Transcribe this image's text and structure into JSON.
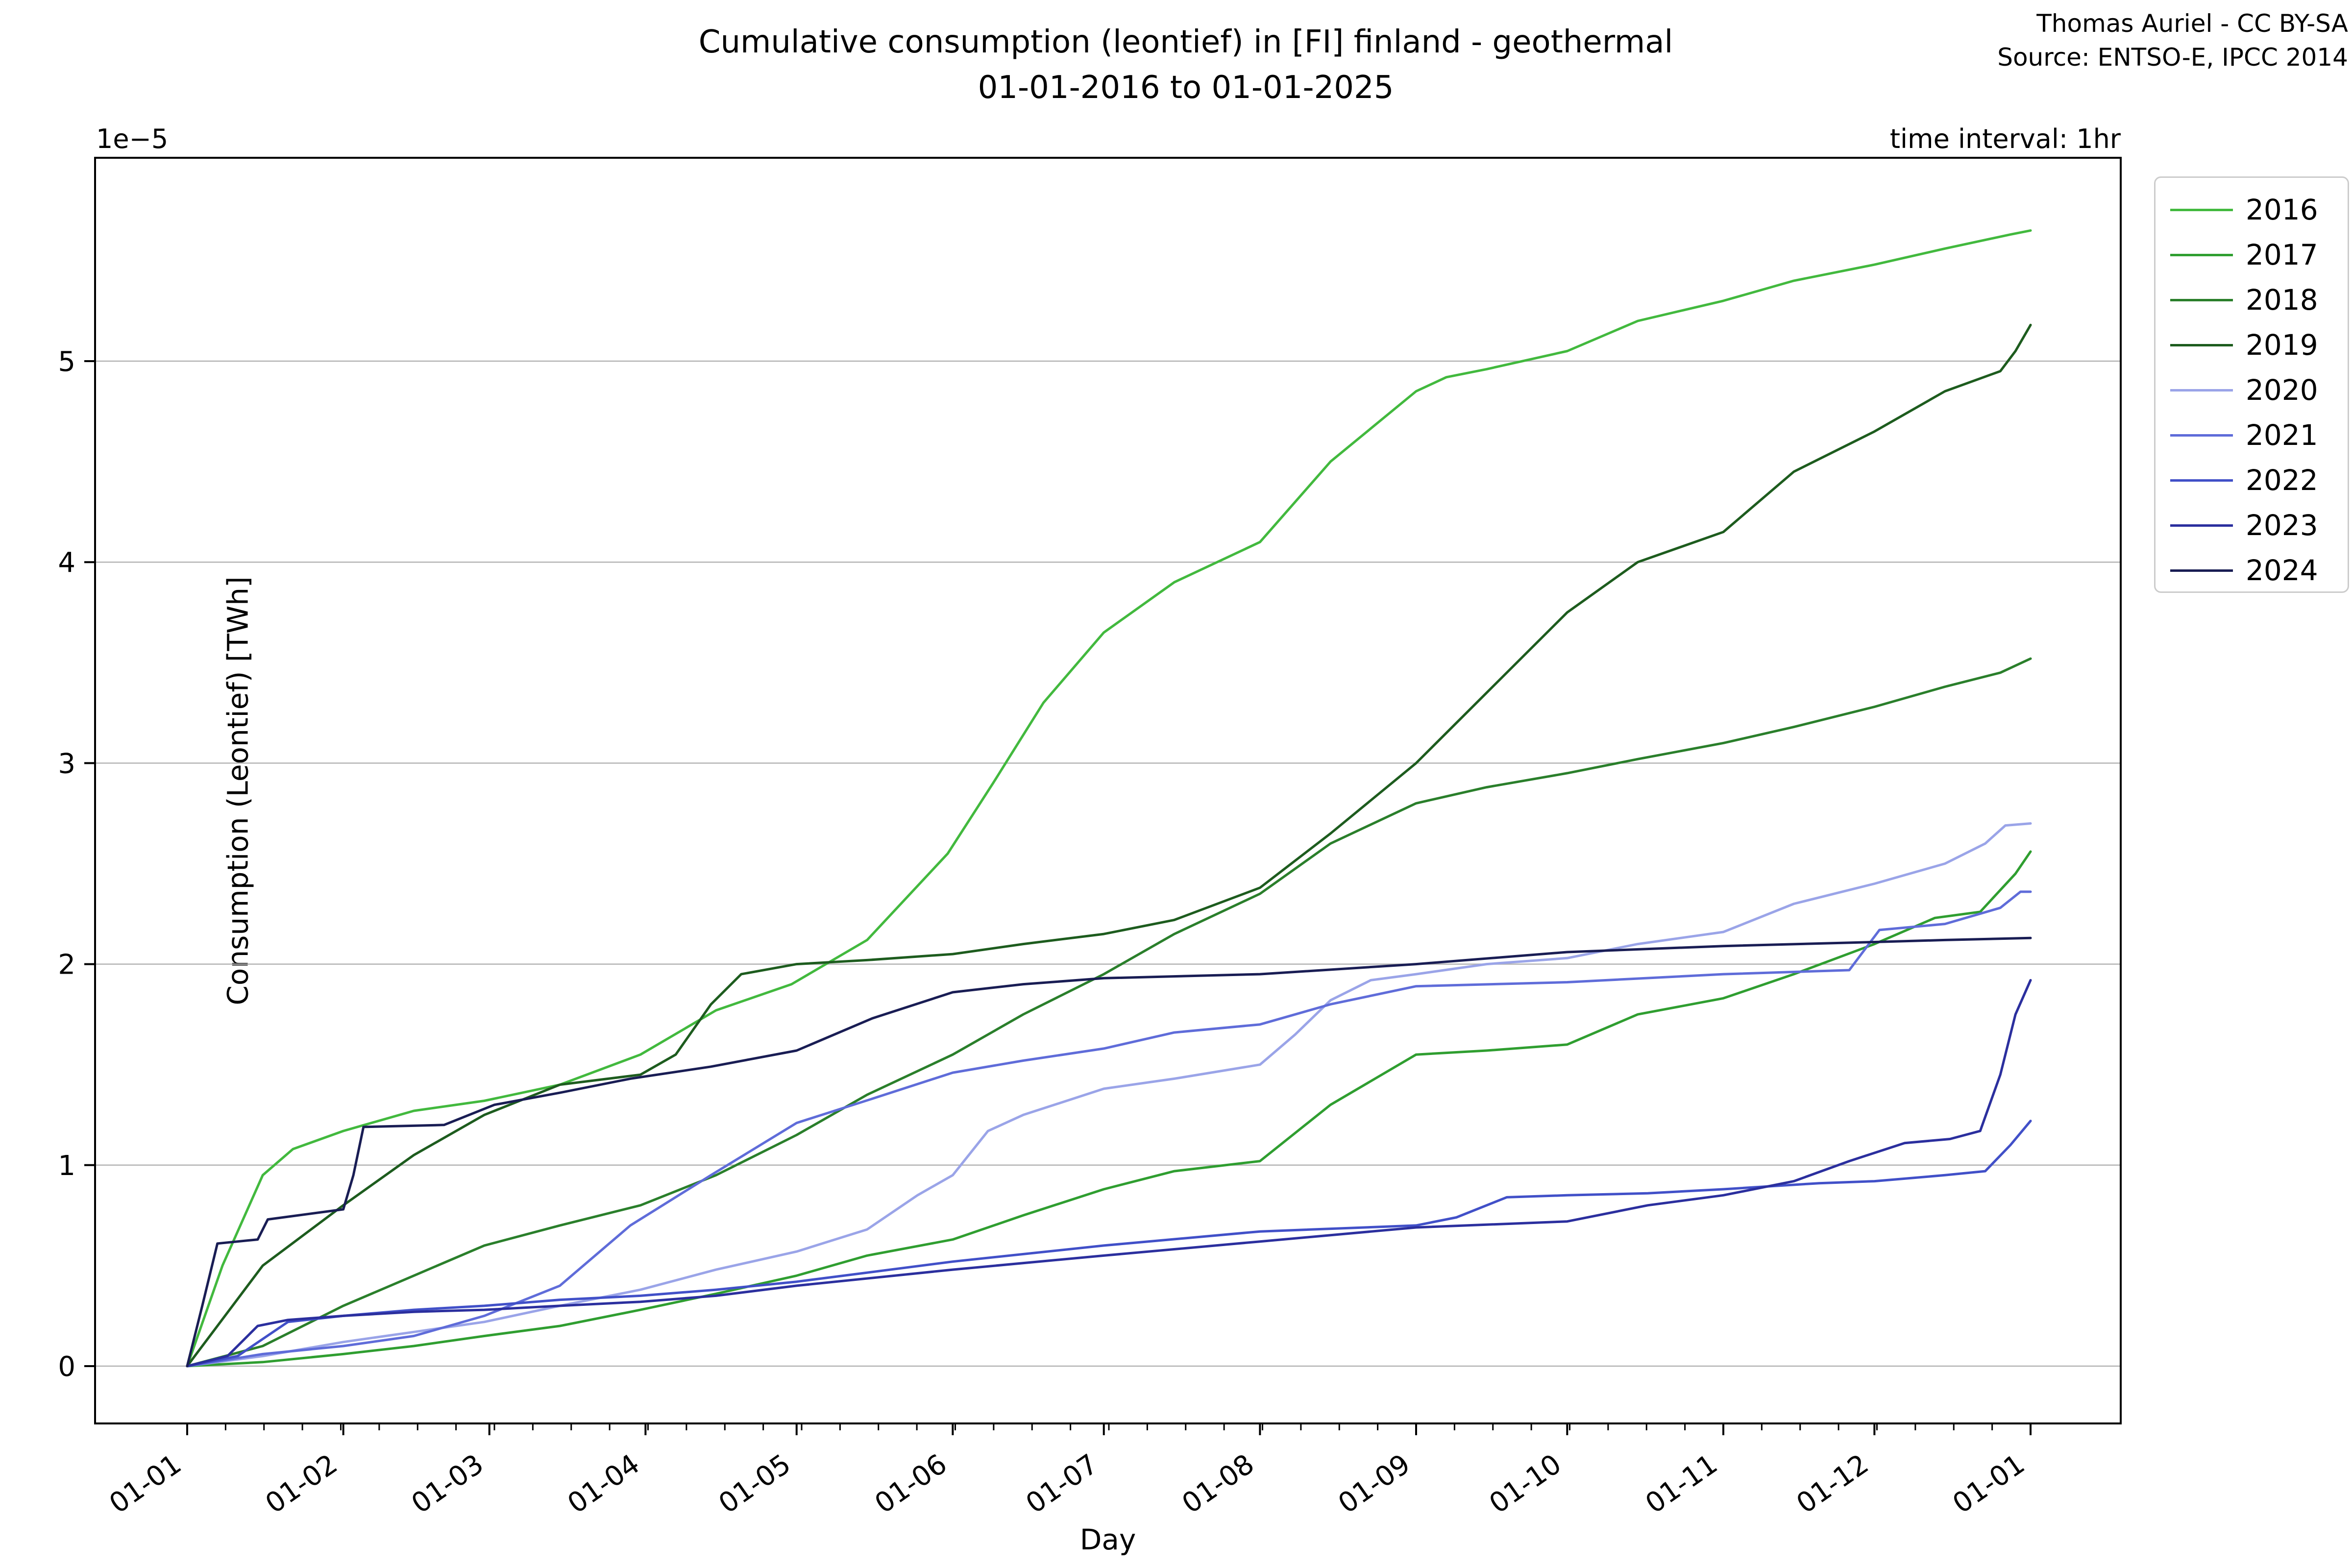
{
  "figure": {
    "title_line1": "Cumulative consumption (leontief) in [FI] finland - geothermal",
    "title_line2": "01-01-2016 to 01-01-2025",
    "attribution_line1": "Thomas Auriel - CC BY-SA",
    "attribution_line2": "Source: ENTSO-E, IPCC 2014",
    "time_interval_label": "time interval: 1hr",
    "xlabel": "Day",
    "ylabel": "Consumption (Leontief) [TWh]",
    "y_offset_label": "1e−5"
  },
  "chart_data": {
    "type": "line",
    "title": "Cumulative consumption (leontief) in [FI] finland - geothermal 01-01-2016 to 01-01-2025",
    "xlabel": "Day",
    "ylabel": "Consumption (Leontief) [TWh]",
    "y_scale_factor": "1e-5",
    "ylim": [
      -0.28,
      6.02
    ],
    "grid": "horizontal-only",
    "gridline_color": "#b4b4b4",
    "legend_position": "upper-right-outside",
    "x_axis": {
      "unit": "day-of-year",
      "range_days": [
        0,
        366
      ],
      "tick_days": [
        0,
        31,
        60,
        91,
        121,
        152,
        182,
        213,
        244,
        274,
        305,
        335,
        366
      ],
      "tick_labels": [
        "01-01",
        "01-02",
        "01-03",
        "01-04",
        "01-05",
        "01-06",
        "01-07",
        "01-08",
        "01-09",
        "01-10",
        "01-11",
        "01-12",
        "01-01"
      ],
      "tick_rotation_deg": -35,
      "minor_tick_step_days": 7.625
    },
    "y_axis": {
      "ticks": [
        0,
        1,
        2,
        3,
        4,
        5
      ],
      "offset_text": "1e−5"
    },
    "series": [
      {
        "name": "2016",
        "color": "#42b93e",
        "points": [
          [
            0,
            0
          ],
          [
            7,
            0.5
          ],
          [
            15,
            0.95
          ],
          [
            21,
            1.08
          ],
          [
            31,
            1.17
          ],
          [
            45,
            1.27
          ],
          [
            59,
            1.32
          ],
          [
            74,
            1.4
          ],
          [
            90,
            1.55
          ],
          [
            105,
            1.77
          ],
          [
            120,
            1.9
          ],
          [
            135,
            2.12
          ],
          [
            151,
            2.55
          ],
          [
            160,
            2.9
          ],
          [
            170,
            3.3
          ],
          [
            182,
            3.65
          ],
          [
            196,
            3.9
          ],
          [
            213,
            4.1
          ],
          [
            227,
            4.5
          ],
          [
            244,
            4.85
          ],
          [
            250,
            4.92
          ],
          [
            258,
            4.96
          ],
          [
            274,
            5.05
          ],
          [
            288,
            5.2
          ],
          [
            305,
            5.3
          ],
          [
            319,
            5.4
          ],
          [
            335,
            5.48
          ],
          [
            349,
            5.56
          ],
          [
            362,
            5.63
          ],
          [
            366,
            5.65
          ]
        ]
      },
      {
        "name": "2017",
        "color": "#2f9e30",
        "points": [
          [
            0,
            0
          ],
          [
            15,
            0.02
          ],
          [
            31,
            0.06
          ],
          [
            45,
            0.1
          ],
          [
            59,
            0.15
          ],
          [
            74,
            0.2
          ],
          [
            90,
            0.28
          ],
          [
            105,
            0.36
          ],
          [
            121,
            0.45
          ],
          [
            135,
            0.55
          ],
          [
            152,
            0.63
          ],
          [
            166,
            0.75
          ],
          [
            182,
            0.88
          ],
          [
            196,
            0.97
          ],
          [
            213,
            1.02
          ],
          [
            227,
            1.3
          ],
          [
            244,
            1.55
          ],
          [
            258,
            1.57
          ],
          [
            274,
            1.6
          ],
          [
            288,
            1.75
          ],
          [
            305,
            1.83
          ],
          [
            319,
            1.95
          ],
          [
            335,
            2.1
          ],
          [
            347,
            2.23
          ],
          [
            356,
            2.26
          ],
          [
            363,
            2.45
          ],
          [
            366,
            2.56
          ]
        ]
      },
      {
        "name": "2018",
        "color": "#2a7f2b",
        "points": [
          [
            0,
            0
          ],
          [
            15,
            0.1
          ],
          [
            31,
            0.3
          ],
          [
            45,
            0.45
          ],
          [
            59,
            0.6
          ],
          [
            74,
            0.7
          ],
          [
            90,
            0.8
          ],
          [
            105,
            0.95
          ],
          [
            121,
            1.15
          ],
          [
            135,
            1.35
          ],
          [
            152,
            1.55
          ],
          [
            166,
            1.75
          ],
          [
            182,
            1.95
          ],
          [
            196,
            2.15
          ],
          [
            213,
            2.35
          ],
          [
            227,
            2.6
          ],
          [
            244,
            2.8
          ],
          [
            258,
            2.88
          ],
          [
            274,
            2.95
          ],
          [
            288,
            3.02
          ],
          [
            305,
            3.1
          ],
          [
            319,
            3.18
          ],
          [
            335,
            3.28
          ],
          [
            349,
            3.38
          ],
          [
            360,
            3.45
          ],
          [
            366,
            3.52
          ]
        ]
      },
      {
        "name": "2019",
        "color": "#1d5c1e",
        "points": [
          [
            0,
            0
          ],
          [
            6,
            0.2
          ],
          [
            15,
            0.5
          ],
          [
            31,
            0.8
          ],
          [
            45,
            1.05
          ],
          [
            59,
            1.25
          ],
          [
            74,
            1.4
          ],
          [
            90,
            1.45
          ],
          [
            97,
            1.55
          ],
          [
            104,
            1.8
          ],
          [
            110,
            1.95
          ],
          [
            121,
            2.0
          ],
          [
            135,
            2.02
          ],
          [
            152,
            2.05
          ],
          [
            166,
            2.1
          ],
          [
            182,
            2.15
          ],
          [
            196,
            2.22
          ],
          [
            213,
            2.38
          ],
          [
            227,
            2.65
          ],
          [
            244,
            3.0
          ],
          [
            258,
            3.35
          ],
          [
            274,
            3.75
          ],
          [
            288,
            4.0
          ],
          [
            305,
            4.15
          ],
          [
            319,
            4.45
          ],
          [
            335,
            4.65
          ],
          [
            349,
            4.85
          ],
          [
            360,
            4.95
          ],
          [
            363,
            5.05
          ],
          [
            366,
            5.18
          ]
        ]
      },
      {
        "name": "2020",
        "color": "#9aa4e8",
        "points": [
          [
            0,
            0
          ],
          [
            15,
            0.05
          ],
          [
            31,
            0.12
          ],
          [
            45,
            0.17
          ],
          [
            59,
            0.22
          ],
          [
            74,
            0.3
          ],
          [
            90,
            0.38
          ],
          [
            105,
            0.48
          ],
          [
            121,
            0.57
          ],
          [
            135,
            0.68
          ],
          [
            145,
            0.85
          ],
          [
            152,
            0.95
          ],
          [
            159,
            1.17
          ],
          [
            166,
            1.25
          ],
          [
            182,
            1.38
          ],
          [
            196,
            1.43
          ],
          [
            213,
            1.5
          ],
          [
            220,
            1.65
          ],
          [
            227,
            1.82
          ],
          [
            235,
            1.92
          ],
          [
            244,
            1.95
          ],
          [
            258,
            2.0
          ],
          [
            274,
            2.03
          ],
          [
            288,
            2.1
          ],
          [
            305,
            2.16
          ],
          [
            319,
            2.3
          ],
          [
            335,
            2.4
          ],
          [
            349,
            2.5
          ],
          [
            357,
            2.6
          ],
          [
            361,
            2.69
          ],
          [
            366,
            2.7
          ]
        ]
      },
      {
        "name": "2021",
        "color": "#5f6cd9",
        "points": [
          [
            0,
            0
          ],
          [
            15,
            0.06
          ],
          [
            31,
            0.1
          ],
          [
            45,
            0.15
          ],
          [
            59,
            0.25
          ],
          [
            74,
            0.4
          ],
          [
            88,
            0.7
          ],
          [
            104,
            0.95
          ],
          [
            121,
            1.21
          ],
          [
            136,
            1.33
          ],
          [
            152,
            1.46
          ],
          [
            166,
            1.52
          ],
          [
            182,
            1.58
          ],
          [
            196,
            1.66
          ],
          [
            213,
            1.7
          ],
          [
            227,
            1.8
          ],
          [
            244,
            1.89
          ],
          [
            274,
            1.91
          ],
          [
            305,
            1.95
          ],
          [
            330,
            1.97
          ],
          [
            336,
            2.17
          ],
          [
            349,
            2.2
          ],
          [
            360,
            2.28
          ],
          [
            364,
            2.36
          ],
          [
            366,
            2.36
          ]
        ]
      },
      {
        "name": "2022",
        "color": "#4150c8",
        "points": [
          [
            0,
            0
          ],
          [
            10,
            0.05
          ],
          [
            20,
            0.22
          ],
          [
            31,
            0.25
          ],
          [
            45,
            0.28
          ],
          [
            59,
            0.3
          ],
          [
            74,
            0.33
          ],
          [
            90,
            0.35
          ],
          [
            105,
            0.38
          ],
          [
            121,
            0.42
          ],
          [
            152,
            0.52
          ],
          [
            182,
            0.6
          ],
          [
            213,
            0.67
          ],
          [
            244,
            0.7
          ],
          [
            252,
            0.74
          ],
          [
            262,
            0.84
          ],
          [
            274,
            0.85
          ],
          [
            290,
            0.86
          ],
          [
            305,
            0.88
          ],
          [
            324,
            0.91
          ],
          [
            335,
            0.92
          ],
          [
            349,
            0.95
          ],
          [
            357,
            0.97
          ],
          [
            362,
            1.1
          ],
          [
            366,
            1.22
          ]
        ]
      },
      {
        "name": "2023",
        "color": "#2b2f9e",
        "points": [
          [
            0,
            0
          ],
          [
            8,
            0.05
          ],
          [
            14,
            0.2
          ],
          [
            20,
            0.23
          ],
          [
            31,
            0.25
          ],
          [
            45,
            0.27
          ],
          [
            59,
            0.28
          ],
          [
            74,
            0.3
          ],
          [
            90,
            0.32
          ],
          [
            105,
            0.35
          ],
          [
            121,
            0.4
          ],
          [
            152,
            0.48
          ],
          [
            182,
            0.55
          ],
          [
            213,
            0.62
          ],
          [
            244,
            0.69
          ],
          [
            274,
            0.72
          ],
          [
            290,
            0.8
          ],
          [
            305,
            0.85
          ],
          [
            319,
            0.92
          ],
          [
            330,
            1.02
          ],
          [
            341,
            1.11
          ],
          [
            350,
            1.13
          ],
          [
            356,
            1.17
          ],
          [
            360,
            1.45
          ],
          [
            363,
            1.75
          ],
          [
            366,
            1.92
          ]
        ]
      },
      {
        "name": "2024",
        "color": "#191d54",
        "points": [
          [
            0,
            0
          ],
          [
            3,
            0.3
          ],
          [
            6,
            0.61
          ],
          [
            14,
            0.63
          ],
          [
            16,
            0.73
          ],
          [
            31,
            0.78
          ],
          [
            33,
            0.95
          ],
          [
            35,
            1.19
          ],
          [
            51,
            1.2
          ],
          [
            61,
            1.3
          ],
          [
            74,
            1.36
          ],
          [
            88,
            1.43
          ],
          [
            104,
            1.49
          ],
          [
            121,
            1.57
          ],
          [
            136,
            1.73
          ],
          [
            152,
            1.86
          ],
          [
            166,
            1.9
          ],
          [
            182,
            1.93
          ],
          [
            213,
            1.95
          ],
          [
            244,
            2.0
          ],
          [
            274,
            2.06
          ],
          [
            305,
            2.09
          ],
          [
            335,
            2.11
          ],
          [
            349,
            2.12
          ],
          [
            366,
            2.13
          ]
        ]
      }
    ]
  },
  "legend": {
    "entries": [
      "2016",
      "2017",
      "2018",
      "2019",
      "2020",
      "2021",
      "2022",
      "2023",
      "2024"
    ]
  }
}
